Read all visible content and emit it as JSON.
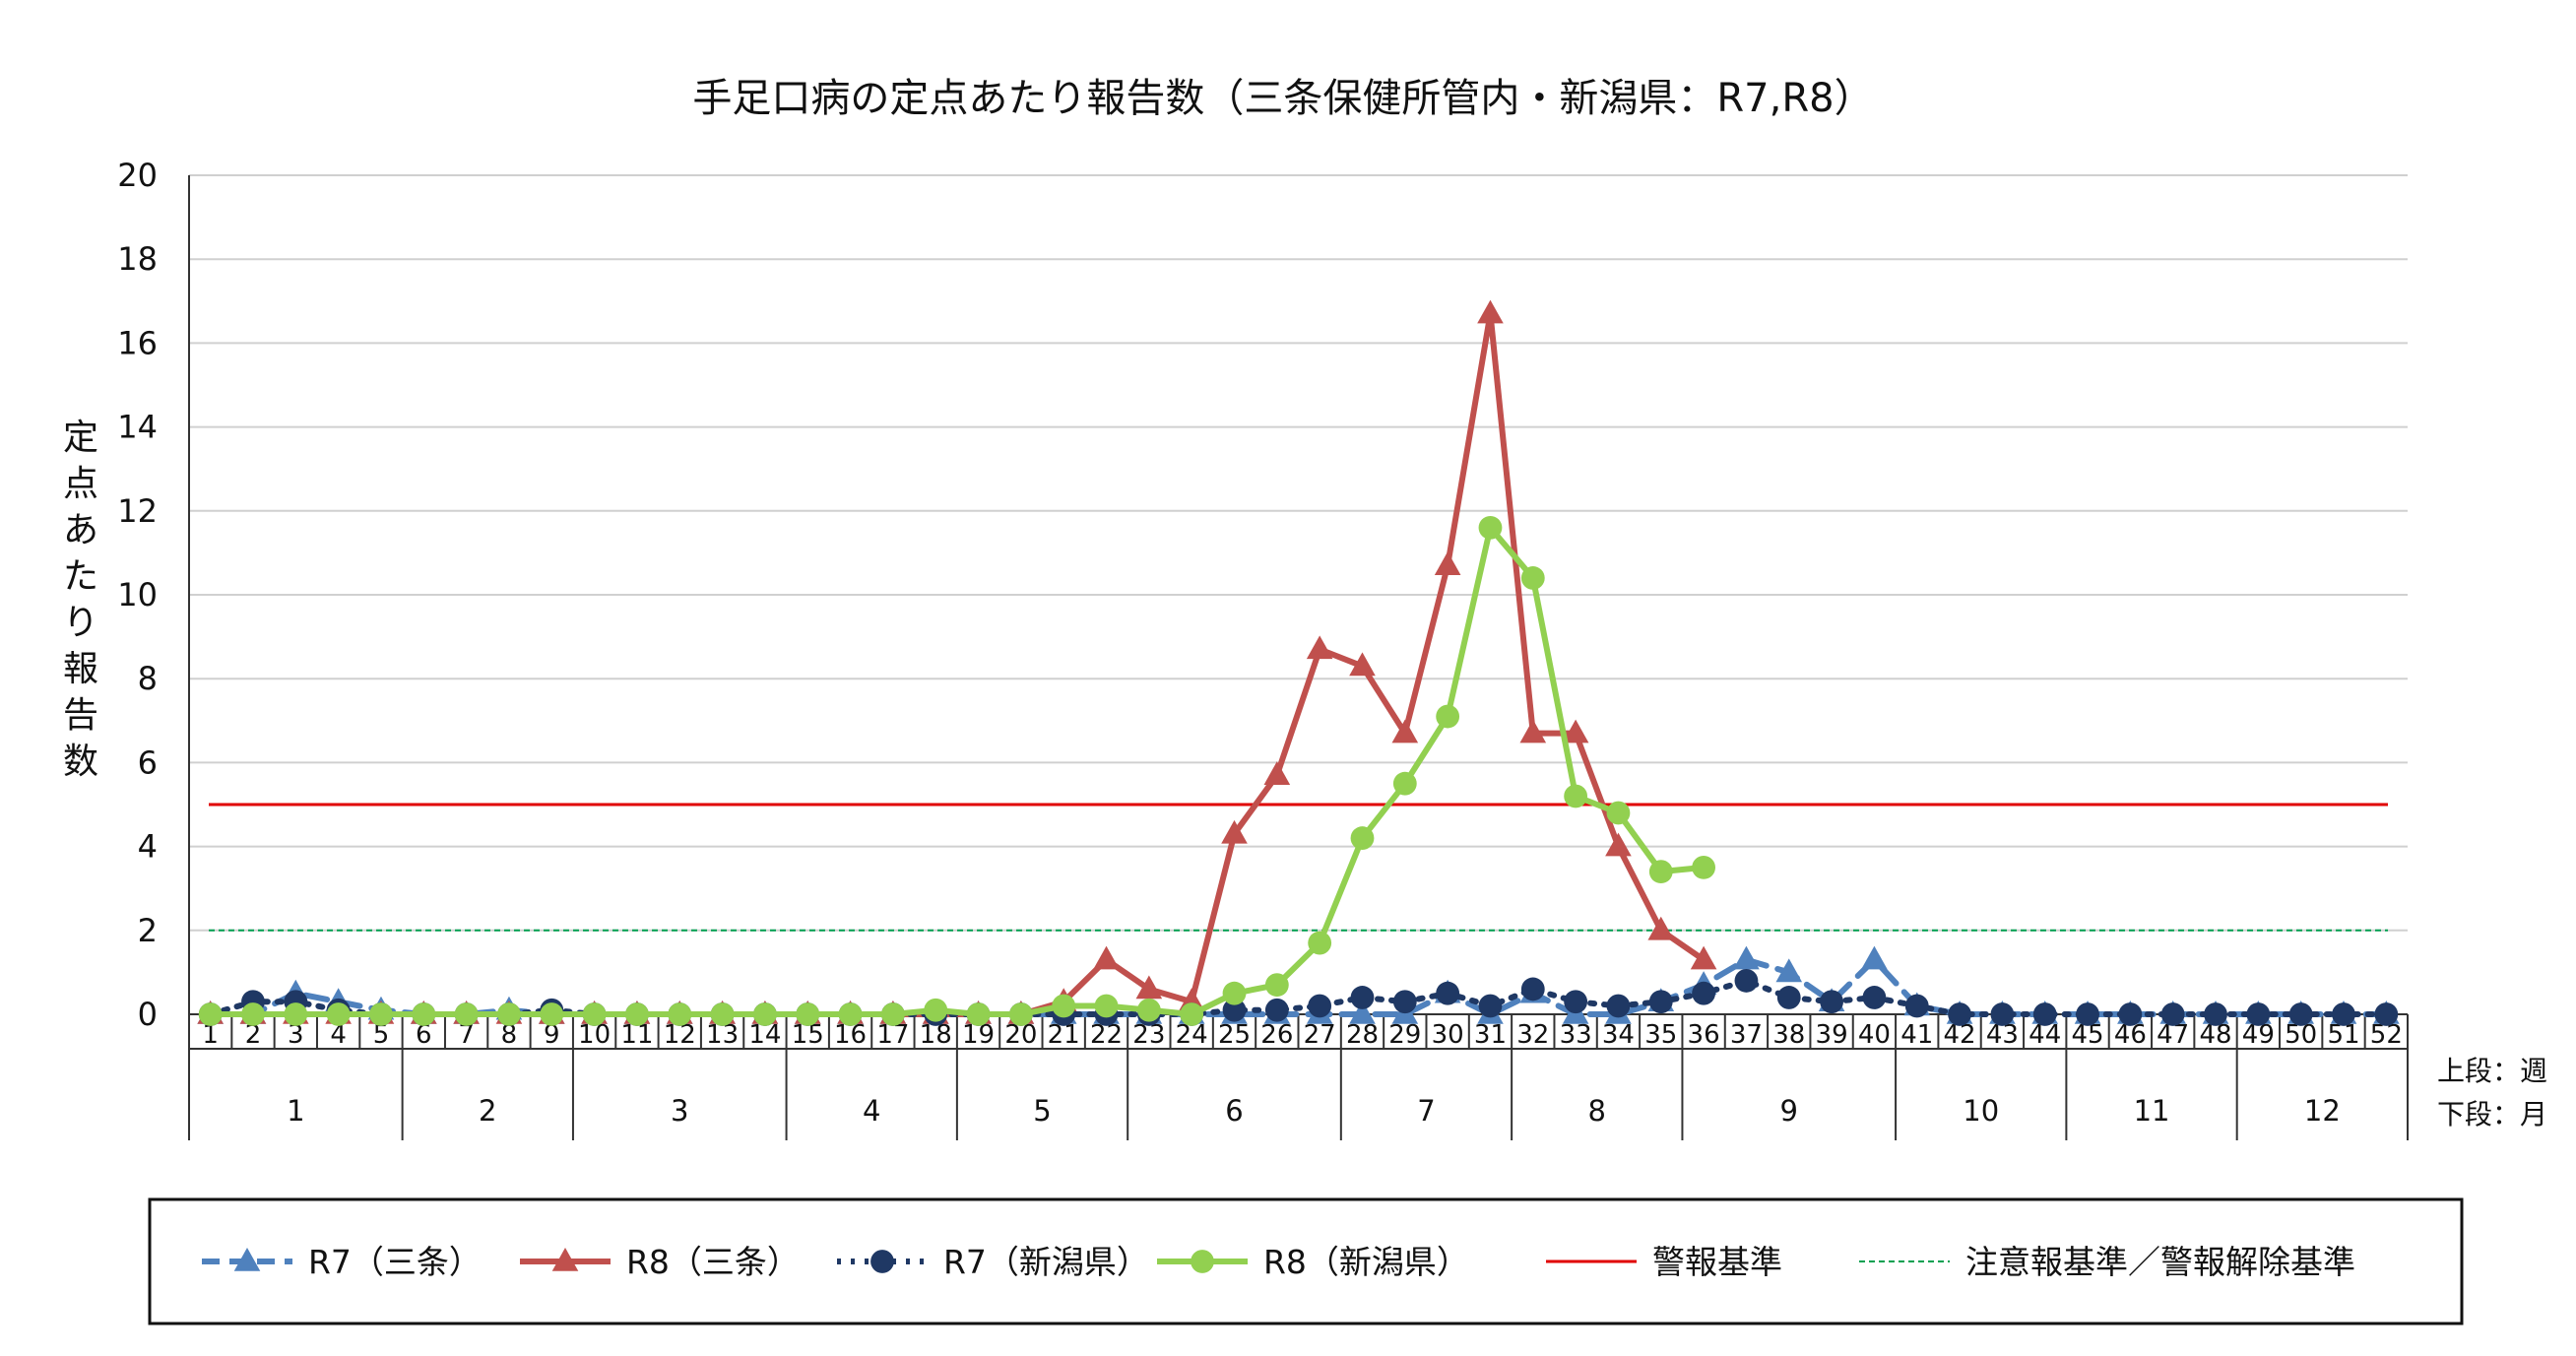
{
  "chart_data": {
    "type": "line",
    "title": "手足口病の定点あたり報告数（三条保健所管内・新潟県：R7,R8）",
    "ylabel": "定点あたり報告数",
    "ylim": [
      0,
      20
    ],
    "yticks": [
      "0",
      "2",
      "4",
      "6",
      "8",
      "10",
      "12",
      "14",
      "16",
      "18",
      "20"
    ],
    "week_labels": [
      "1",
      "2",
      "3",
      "4",
      "5",
      "6",
      "7",
      "8",
      "9",
      "10",
      "11",
      "12",
      "13",
      "14",
      "15",
      "16",
      "17",
      "18",
      "19",
      "20",
      "21",
      "22",
      "23",
      "24",
      "25",
      "26",
      "27",
      "28",
      "29",
      "30",
      "31",
      "32",
      "33",
      "34",
      "35",
      "36",
      "37",
      "38",
      "39",
      "40",
      "41",
      "42",
      "43",
      "44",
      "45",
      "46",
      "47",
      "48",
      "49",
      "50",
      "51",
      "52"
    ],
    "months": [
      {
        "label": "1",
        "start_week": 1,
        "end_week": 5
      },
      {
        "label": "2",
        "start_week": 6,
        "end_week": 9
      },
      {
        "label": "3",
        "start_week": 10,
        "end_week": 14
      },
      {
        "label": "4",
        "start_week": 15,
        "end_week": 18
      },
      {
        "label": "5",
        "start_week": 19,
        "end_week": 22
      },
      {
        "label": "6",
        "start_week": 23,
        "end_week": 27
      },
      {
        "label": "7",
        "start_week": 28,
        "end_week": 31
      },
      {
        "label": "8",
        "start_week": 32,
        "end_week": 35
      },
      {
        "label": "9",
        "start_week": 36,
        "end_week": 40
      },
      {
        "label": "10",
        "start_week": 41,
        "end_week": 44
      },
      {
        "label": "11",
        "start_week": 45,
        "end_week": 48
      },
      {
        "label": "12",
        "start_week": 49,
        "end_week": 52
      }
    ],
    "side_labels": {
      "top": "上段：週",
      "bottom": "下段：月"
    },
    "series": [
      {
        "name": "R7（三条）",
        "color": "#4F81BD",
        "style": "dashed",
        "marker": "triangle",
        "values": [
          0.0,
          0.0,
          0.5,
          0.3,
          0.1,
          0.0,
          0.0,
          0.1,
          0.0,
          0.0,
          0.0,
          0.0,
          0.0,
          0.0,
          0.0,
          0.0,
          0.0,
          0.0,
          0.0,
          0.0,
          0.0,
          0.0,
          0.0,
          0.0,
          0.0,
          0.0,
          0.0,
          0.0,
          0.0,
          0.5,
          0.0,
          0.5,
          0.0,
          0.0,
          0.3,
          0.7,
          1.3,
          1.0,
          0.3,
          1.3,
          0.2,
          0.0,
          0.0,
          0.0,
          0.0,
          0.0,
          0.0,
          0.0,
          0.0,
          0.0,
          0.0,
          0.0
        ]
      },
      {
        "name": "R8（三条）",
        "color": "#C0504D",
        "style": "solid",
        "marker": "triangle",
        "values": [
          0.0,
          0.0,
          0.0,
          0.0,
          0.0,
          0.0,
          0.0,
          0.0,
          0.0,
          0.0,
          0.0,
          0.0,
          0.0,
          0.0,
          0.0,
          0.0,
          0.0,
          0.0,
          0.0,
          0.0,
          0.3,
          1.3,
          0.6,
          0.3,
          4.3,
          5.7,
          8.7,
          8.3,
          6.7,
          10.7,
          16.7,
          6.7,
          6.7,
          4.0,
          2.0,
          1.3
        ]
      },
      {
        "name": "R7（新潟県）",
        "color": "#1F3864",
        "style": "dotted",
        "marker": "circle",
        "values": [
          0.0,
          0.3,
          0.3,
          0.1,
          0.0,
          0.0,
          0.0,
          0.0,
          0.1,
          0.0,
          0.0,
          0.0,
          0.0,
          0.0,
          0.0,
          0.0,
          0.0,
          0.0,
          0.0,
          0.0,
          0.0,
          0.0,
          0.0,
          0.0,
          0.1,
          0.1,
          0.2,
          0.4,
          0.3,
          0.5,
          0.2,
          0.6,
          0.3,
          0.2,
          0.3,
          0.5,
          0.8,
          0.4,
          0.3,
          0.4,
          0.2,
          0.0,
          0.0,
          0.0,
          0.0,
          0.0,
          0.0,
          0.0,
          0.0,
          0.0,
          0.0,
          0.0
        ]
      },
      {
        "name": "R8（新潟県）",
        "color": "#92D050",
        "style": "solid",
        "marker": "circle",
        "values": [
          0.0,
          0.0,
          0.0,
          0.0,
          0.0,
          0.0,
          0.0,
          0.0,
          0.0,
          0.0,
          0.0,
          0.0,
          0.0,
          0.0,
          0.0,
          0.0,
          0.0,
          0.1,
          0.0,
          0.0,
          0.2,
          0.2,
          0.1,
          0.0,
          0.5,
          0.7,
          1.7,
          4.2,
          5.5,
          7.1,
          11.6,
          10.4,
          5.2,
          4.8,
          3.4,
          3.5
        ]
      }
    ],
    "reference_lines": [
      {
        "name": "警報基準",
        "value": 5,
        "color": "#E00000",
        "style": "solid"
      },
      {
        "name": "注意報基準／警報解除基準",
        "value": 2,
        "color": "#00A050",
        "style": "dashed"
      }
    ],
    "legend_position": "bottom",
    "grid": true
  }
}
